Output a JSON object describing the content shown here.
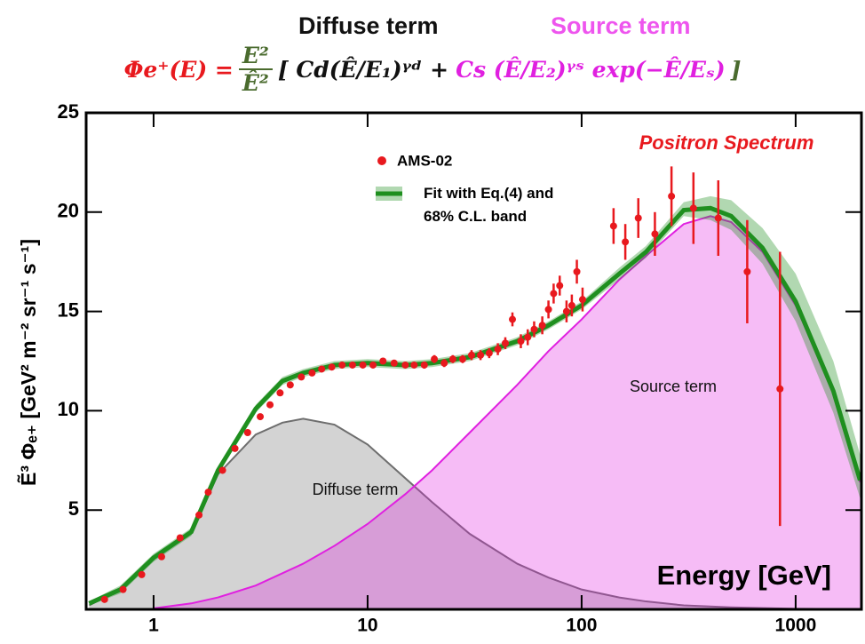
{
  "chart_data": {
    "type": "line",
    "headers": [
      "Diffuse term",
      "Source term"
    ],
    "equation": {
      "lhs": "Φe⁺(E) =",
      "numerator": "E²",
      "denominator": "Ê²",
      "diffuse": "[ Cd(Ê/E₁)ᵞᵈ +",
      "source": "Cs (Ê/E₂)ᵞˢ exp(−Ê/Eₛ)",
      "close": "]"
    },
    "annotation": "Positron Spectrum",
    "x_label": "Energy [GeV]",
    "y_label": "Ẽ³ Φₑ₊ [GeV² m⁻² sr⁻¹ s⁻¹]",
    "xscale": "log",
    "xlim": [
      0.484,
      2030
    ],
    "xticks": [
      1,
      10,
      100,
      1000
    ],
    "ylim": [
      0,
      25
    ],
    "yticks": [
      5,
      10,
      15,
      20,
      25
    ],
    "series": [
      {
        "name": "Diffuse term",
        "type": "area",
        "color": "#6e6e6e",
        "x": [
          0.5,
          0.7,
          1,
          1.5,
          2,
          3,
          4,
          5,
          7,
          10,
          15,
          20,
          30,
          50,
          70,
          100,
          150,
          200,
          300,
          500,
          1000,
          2000
        ],
        "values": [
          0.2,
          1.0,
          2.6,
          3.9,
          6.8,
          8.8,
          9.4,
          9.6,
          9.3,
          8.3,
          6.6,
          5.4,
          3.8,
          2.3,
          1.6,
          1.0,
          0.6,
          0.4,
          0.2,
          0.1,
          0.03,
          0.01
        ]
      },
      {
        "name": "Source term",
        "type": "area",
        "color": "#e020e0",
        "x": [
          1,
          1.5,
          2,
          3,
          5,
          7,
          10,
          15,
          20,
          30,
          50,
          70,
          100,
          150,
          200,
          300,
          400,
          500,
          700,
          1000,
          1500,
          2000
        ],
        "values": [
          0.05,
          0.3,
          0.6,
          1.2,
          2.3,
          3.2,
          4.3,
          5.8,
          7.0,
          8.9,
          11.3,
          13.0,
          14.6,
          16.6,
          17.8,
          19.4,
          19.8,
          19.5,
          18.0,
          15.3,
          10.9,
          6.4
        ]
      },
      {
        "name": "Fit with Eq.(4) and 68% C.L. band",
        "type": "line",
        "color": "#1f8f1f",
        "x": [
          0.5,
          0.7,
          1,
          1.5,
          2,
          3,
          4,
          5,
          7,
          10,
          15,
          20,
          30,
          50,
          70,
          100,
          150,
          200,
          300,
          400,
          500,
          700,
          1000,
          1500,
          2000
        ],
        "values": [
          0.3,
          1.0,
          2.6,
          3.9,
          7.0,
          10.1,
          11.5,
          11.9,
          12.3,
          12.4,
          12.3,
          12.4,
          12.7,
          13.5,
          14.3,
          15.3,
          16.9,
          18.0,
          20.1,
          20.2,
          19.8,
          18.2,
          15.5,
          11.0,
          6.5
        ],
        "low": [
          0.2,
          0.8,
          2.4,
          3.7,
          6.8,
          9.9,
          11.3,
          11.7,
          12.1,
          12.2,
          12.1,
          12.2,
          12.5,
          13.3,
          14.1,
          15.1,
          16.6,
          17.7,
          19.8,
          19.6,
          19.1,
          17.4,
          14.5,
          9.9,
          5.6
        ],
        "high": [
          0.4,
          1.2,
          2.8,
          4.1,
          7.2,
          10.3,
          11.7,
          12.1,
          12.5,
          12.6,
          12.5,
          12.6,
          12.9,
          13.7,
          14.5,
          15.5,
          17.2,
          18.3,
          20.5,
          20.8,
          20.6,
          19.2,
          16.9,
          12.5,
          7.8
        ]
      },
      {
        "name": "AMS-02",
        "type": "scatter",
        "color": "#e8191e",
        "x": [
          0.59,
          0.72,
          0.88,
          1.09,
          1.33,
          1.63,
          1.8,
          2.1,
          2.4,
          2.75,
          3.15,
          3.5,
          3.9,
          4.35,
          4.9,
          5.5,
          6.1,
          6.8,
          7.6,
          8.5,
          9.5,
          10.6,
          11.8,
          13.3,
          15,
          16.5,
          18.4,
          20.5,
          22.8,
          25,
          27.8,
          30.6,
          33.7,
          37,
          40.6,
          44,
          47.5,
          52,
          56,
          60,
          65.5,
          70,
          74,
          79,
          85,
          90,
          95,
          101,
          141,
          160,
          184,
          220,
          263,
          333,
          435,
          594,
          845
        ],
        "values": [
          0.5,
          1.0,
          1.75,
          2.65,
          3.6,
          4.75,
          5.9,
          7.0,
          8.1,
          8.9,
          9.7,
          10.3,
          10.9,
          11.3,
          11.7,
          11.9,
          12.1,
          12.2,
          12.3,
          12.3,
          12.3,
          12.3,
          12.5,
          12.4,
          12.3,
          12.3,
          12.3,
          12.6,
          12.4,
          12.6,
          12.6,
          12.8,
          12.8,
          12.9,
          13.1,
          13.4,
          14.6,
          13.5,
          13.7,
          14.1,
          14.3,
          15.1,
          15.9,
          16.3,
          15.0,
          15.3,
          17.0,
          15.6,
          19.3,
          18.5,
          19.7,
          18.9,
          20.8,
          20.2,
          19.7,
          17.0,
          11.1
        ],
        "errors": [
          0.05,
          0.05,
          0.05,
          0.06,
          0.07,
          0.08,
          0.1,
          0.1,
          0.1,
          0.1,
          0.1,
          0.1,
          0.1,
          0.1,
          0.1,
          0.1,
          0.1,
          0.1,
          0.1,
          0.1,
          0.1,
          0.12,
          0.15,
          0.15,
          0.15,
          0.15,
          0.18,
          0.2,
          0.2,
          0.2,
          0.2,
          0.25,
          0.25,
          0.25,
          0.3,
          0.3,
          0.35,
          0.35,
          0.4,
          0.4,
          0.45,
          0.45,
          0.5,
          0.5,
          0.55,
          0.55,
          0.6,
          0.6,
          0.9,
          0.9,
          1.0,
          1.1,
          1.5,
          1.8,
          1.9,
          2.6,
          6.9
        ]
      }
    ]
  }
}
